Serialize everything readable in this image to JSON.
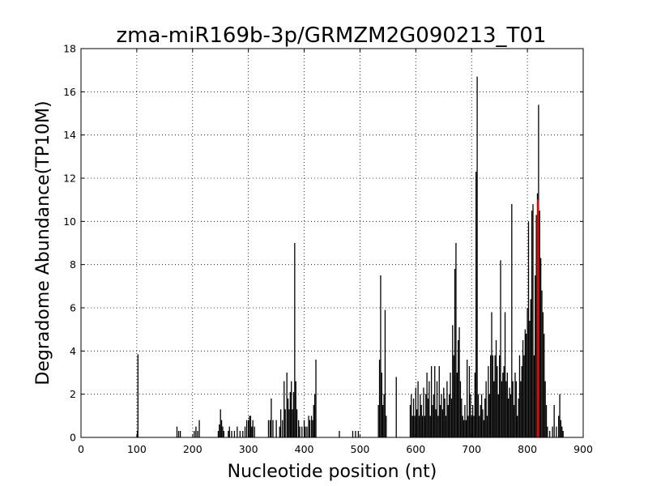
{
  "chart_data": {
    "type": "bar",
    "title": "zma-miR169b-3p/GRMZM2G090213_T01",
    "xlabel": "Nucleotide position (nt)",
    "ylabel": "Degradome Abundance(TP10M)",
    "xlim": [
      0,
      900
    ],
    "ylim": [
      0,
      18
    ],
    "xticks": [
      0,
      100,
      200,
      300,
      400,
      500,
      600,
      700,
      800,
      900
    ],
    "yticks": [
      0,
      2,
      4,
      6,
      8,
      10,
      12,
      14,
      16,
      18
    ],
    "grid": true,
    "bar_color": "#000000",
    "highlight_color": "#ff0000",
    "series": [
      {
        "values": [
          [
            102,
            3.85
          ],
          [
            101,
            0.3
          ],
          [
            172,
            0.5
          ],
          [
            175,
            0.3
          ],
          [
            178,
            0.3
          ],
          [
            203,
            0.3
          ],
          [
            206,
            0.5
          ],
          [
            209,
            0.3
          ],
          [
            212,
            0.8
          ],
          [
            246,
            0.3
          ],
          [
            248,
            0.6
          ],
          [
            250,
            1.3
          ],
          [
            252,
            0.8
          ],
          [
            254,
            0.5
          ],
          [
            256,
            0.3
          ],
          [
            264,
            0.3
          ],
          [
            266,
            0.5
          ],
          [
            270,
            0.3
          ],
          [
            275,
            0.3
          ],
          [
            280,
            0.5
          ],
          [
            285,
            0.3
          ],
          [
            290,
            0.3
          ],
          [
            294,
            0.5
          ],
          [
            297,
            0.8
          ],
          [
            300,
            0.8
          ],
          [
            302,
            1.0
          ],
          [
            304,
            1.0
          ],
          [
            306,
            0.5
          ],
          [
            308,
            0.8
          ],
          [
            311,
            0.5
          ],
          [
            336,
            0.8
          ],
          [
            339,
            0.8
          ],
          [
            341,
            1.8
          ],
          [
            344,
            0.8
          ],
          [
            350,
            0.8
          ],
          [
            356,
            0.5
          ],
          [
            358,
            1.3
          ],
          [
            361,
            0.8
          ],
          [
            364,
            2.6
          ],
          [
            366,
            1.3
          ],
          [
            369,
            3.0
          ],
          [
            371,
            1.8
          ],
          [
            373,
            1.3
          ],
          [
            375,
            2.1
          ],
          [
            377,
            2.6
          ],
          [
            379,
            1.3
          ],
          [
            381,
            2.1
          ],
          [
            383,
            9.0
          ],
          [
            385,
            2.6
          ],
          [
            387,
            1.3
          ],
          [
            390,
            0.8
          ],
          [
            392,
            0.5
          ],
          [
            396,
            0.5
          ],
          [
            400,
            0.8
          ],
          [
            402,
            0.5
          ],
          [
            405,
            0.5
          ],
          [
            408,
            1.0
          ],
          [
            410,
            0.8
          ],
          [
            413,
            1.0
          ],
          [
            415,
            0.8
          ],
          [
            417,
            1.5
          ],
          [
            419,
            2.0
          ],
          [
            421,
            3.6
          ],
          [
            463,
            0.3
          ],
          [
            487,
            0.3
          ],
          [
            492,
            0.3
          ],
          [
            497,
            0.3
          ],
          [
            533,
            1.5
          ],
          [
            535,
            3.6
          ],
          [
            537,
            7.5
          ],
          [
            539,
            3.0
          ],
          [
            541,
            1.5
          ],
          [
            543,
            2.0
          ],
          [
            545,
            5.9
          ],
          [
            547,
            1.0
          ],
          [
            565,
            2.8
          ],
          [
            590,
            1.5
          ],
          [
            592,
            2.0
          ],
          [
            594,
            1.0
          ],
          [
            596,
            1.8
          ],
          [
            598,
            1.0
          ],
          [
            600,
            2.3
          ],
          [
            602,
            1.3
          ],
          [
            604,
            2.6
          ],
          [
            606,
            1.0
          ],
          [
            608,
            2.0
          ],
          [
            610,
            1.5
          ],
          [
            612,
            1.0
          ],
          [
            614,
            2.3
          ],
          [
            616,
            1.0
          ],
          [
            618,
            2.0
          ],
          [
            620,
            3.0
          ],
          [
            622,
            1.8
          ],
          [
            624,
            2.6
          ],
          [
            626,
            1.0
          ],
          [
            628,
            3.3
          ],
          [
            630,
            1.5
          ],
          [
            632,
            2.0
          ],
          [
            634,
            3.3
          ],
          [
            636,
            1.3
          ],
          [
            638,
            2.6
          ],
          [
            640,
            1.0
          ],
          [
            642,
            3.3
          ],
          [
            644,
            1.5
          ],
          [
            646,
            2.0
          ],
          [
            648,
            1.3
          ],
          [
            650,
            2.3
          ],
          [
            652,
            1.8
          ],
          [
            654,
            1.0
          ],
          [
            656,
            2.6
          ],
          [
            658,
            1.5
          ],
          [
            660,
            2.0
          ],
          [
            662,
            3.0
          ],
          [
            664,
            1.8
          ],
          [
            666,
            5.2
          ],
          [
            668,
            3.8
          ],
          [
            670,
            7.8
          ],
          [
            672,
            9.0
          ],
          [
            674,
            3.0
          ],
          [
            676,
            4.5
          ],
          [
            678,
            5.1
          ],
          [
            680,
            2.6
          ],
          [
            682,
            1.8
          ],
          [
            684,
            1.0
          ],
          [
            686,
            0.8
          ],
          [
            688,
            1.5
          ],
          [
            690,
            0.8
          ],
          [
            692,
            3.6
          ],
          [
            694,
            1.0
          ],
          [
            696,
            3.3
          ],
          [
            698,
            2.0
          ],
          [
            700,
            1.0
          ],
          [
            702,
            1.5
          ],
          [
            704,
            1.0
          ],
          [
            706,
            3.0
          ],
          [
            708,
            12.3
          ],
          [
            710,
            16.7
          ],
          [
            712,
            2.0
          ],
          [
            714,
            1.0
          ],
          [
            716,
            1.5
          ],
          [
            718,
            2.0
          ],
          [
            720,
            1.3
          ],
          [
            722,
            0.8
          ],
          [
            724,
            1.8
          ],
          [
            726,
            2.6
          ],
          [
            728,
            1.0
          ],
          [
            730,
            3.3
          ],
          [
            732,
            2.0
          ],
          [
            734,
            3.8
          ],
          [
            736,
            5.8
          ],
          [
            738,
            3.8
          ],
          [
            740,
            2.6
          ],
          [
            742,
            3.8
          ],
          [
            744,
            4.5
          ],
          [
            746,
            3.3
          ],
          [
            748,
            2.0
          ],
          [
            750,
            3.8
          ],
          [
            752,
            8.2
          ],
          [
            754,
            2.6
          ],
          [
            756,
            3.0
          ],
          [
            758,
            3.3
          ],
          [
            760,
            5.8
          ],
          [
            762,
            2.6
          ],
          [
            764,
            3.0
          ],
          [
            766,
            1.8
          ],
          [
            768,
            2.3
          ],
          [
            770,
            2.0
          ],
          [
            772,
            10.8
          ],
          [
            774,
            2.6
          ],
          [
            776,
            1.5
          ],
          [
            778,
            3.0
          ],
          [
            780,
            2.6
          ],
          [
            782,
            1.0
          ],
          [
            784,
            1.8
          ],
          [
            786,
            3.8
          ],
          [
            788,
            2.6
          ],
          [
            790,
            3.3
          ],
          [
            792,
            4.5
          ],
          [
            794,
            3.8
          ],
          [
            796,
            5.0
          ],
          [
            798,
            4.8
          ],
          [
            800,
            6.0
          ],
          [
            802,
            10.0
          ],
          [
            804,
            5.4
          ],
          [
            806,
            6.4
          ],
          [
            808,
            10.5
          ],
          [
            810,
            10.8
          ],
          [
            812,
            3.8
          ],
          [
            814,
            7.5
          ],
          [
            816,
            10.3
          ],
          [
            818,
            11.3
          ],
          [
            820,
            15.4
          ],
          [
            822,
            10.5
          ],
          [
            824,
            8.3
          ],
          [
            826,
            6.8
          ],
          [
            828,
            5.8
          ],
          [
            830,
            4.8
          ],
          [
            832,
            2.6
          ],
          [
            834,
            1.5
          ],
          [
            836,
            0.5
          ],
          [
            840,
            0.3
          ],
          [
            845,
            0.5
          ],
          [
            848,
            1.5
          ],
          [
            852,
            0.5
          ],
          [
            856,
            1.0
          ],
          [
            858,
            2.0
          ],
          [
            860,
            0.8
          ],
          [
            862,
            0.5
          ],
          [
            864,
            0.3
          ]
        ]
      },
      {
        "values": [
          [
            819,
            11.0
          ]
        ],
        "highlight": true
      }
    ]
  }
}
